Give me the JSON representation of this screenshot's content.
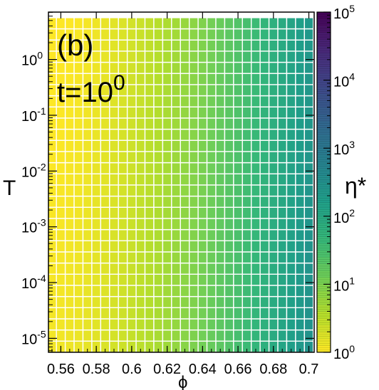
{
  "chart_data": {
    "type": "heatmap",
    "panel_label": "(b)",
    "annotation": {
      "prefix": "t=10",
      "exponent": "0"
    },
    "xlabel": "ϕ",
    "ylabel": "T",
    "colorbar_label": "η*",
    "x_scale": "linear",
    "y_scale": "log",
    "color_scale": "log",
    "xlim": [
      0.553,
      0.703
    ],
    "ylim_log10": [
      -5.25,
      0.85
    ],
    "color_range": [
      1,
      100000
    ],
    "x_ticks": [
      {
        "value": 0.56,
        "label": "0.56"
      },
      {
        "value": 0.58,
        "label": "0.58"
      },
      {
        "value": 0.6,
        "label": "0.6"
      },
      {
        "value": 0.62,
        "label": "0.62"
      },
      {
        "value": 0.64,
        "label": "0.64"
      },
      {
        "value": 0.66,
        "label": "0.66"
      },
      {
        "value": 0.68,
        "label": "0.68"
      },
      {
        "value": 0.7,
        "label": "0.7"
      }
    ],
    "y_ticks": [
      {
        "exp": 0,
        "base": "10",
        "sup": "0"
      },
      {
        "exp": -1,
        "base": "10",
        "sup": "-1"
      },
      {
        "exp": -2,
        "base": "10",
        "sup": "-2"
      },
      {
        "exp": -3,
        "base": "10",
        "sup": "-3"
      },
      {
        "exp": -4,
        "base": "10",
        "sup": "-4"
      },
      {
        "exp": -5,
        "base": "10",
        "sup": "-5"
      }
    ],
    "colorbar_ticks": [
      {
        "exp": 0,
        "base": "10",
        "sup": "0"
      },
      {
        "exp": 1,
        "base": "10",
        "sup": "1"
      },
      {
        "exp": 2,
        "base": "10",
        "sup": "2"
      },
      {
        "exp": 3,
        "base": "10",
        "sup": "3"
      },
      {
        "exp": 4,
        "base": "10",
        "sup": "4"
      },
      {
        "exp": 5,
        "base": "10",
        "sup": "5"
      }
    ],
    "grid": {
      "x_start": 0.555,
      "x_step": 0.005,
      "nx": 30,
      "log10T_start": -5.15,
      "log10T_step": 0.2,
      "ny": 30
    },
    "eta_model": {
      "description": "eta* rises with phi, nearly independent of T",
      "log10_eta_at_x_start": 0.08,
      "log10_eta_at_x_end": 2.45,
      "curvature": 1.6,
      "T_dependence_per_decade": -0.02
    },
    "colors": {
      "background": "#ffffff",
      "grid_line": "#ffffff",
      "frame": "#000000",
      "colormap": [
        "#fde725",
        "#b5de2b",
        "#6ece58",
        "#35b779",
        "#1f9e89",
        "#26828e",
        "#31688e",
        "#3e4989",
        "#482878",
        "#440154"
      ]
    }
  }
}
